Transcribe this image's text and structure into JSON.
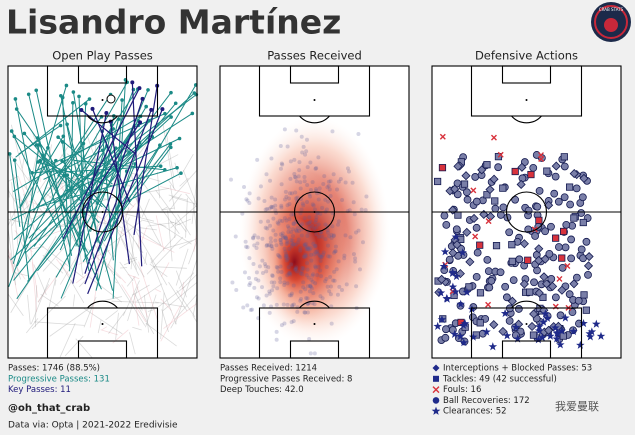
{
  "header": {
    "title": "Lisandro Martínez",
    "logo": "CRAB STATS"
  },
  "panels": [
    {
      "title": "Open Play Passes",
      "stats": [
        "Passes: 1746 (88.5%)",
        "Progressive Passes: 131",
        "Key Passes: 11"
      ]
    },
    {
      "title": "Passes Received",
      "stats": [
        "Passes Received: 1214",
        "Progressive Passes Received: 8",
        "Deep Touches: 42.0"
      ]
    },
    {
      "title": "Defensive Actions",
      "stats": [
        "Interceptions + Blocked Passes: 53",
        "Tackles: 49 (42 successful)",
        "Fouls: 16",
        "Ball Recoveries: 172",
        "Clearances: 52"
      ]
    }
  ],
  "footer": {
    "handle": "@oh_that_crab",
    "source": "Data via: Opta | 2021-2022 Eredivisie"
  },
  "watermark": "我爱曼联"
}
